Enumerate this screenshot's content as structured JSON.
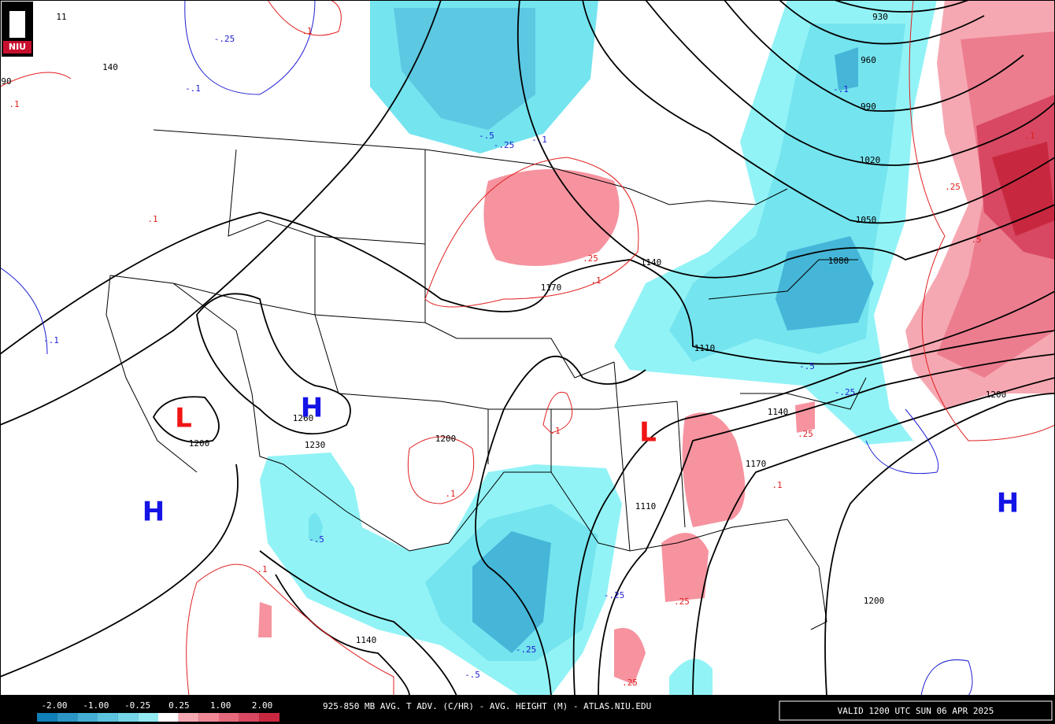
{
  "logo": "NIU",
  "map": {
    "height_labels": [
      "930",
      "960",
      "990",
      "1020",
      "1050",
      "1080",
      "1110",
      "1140",
      "1170",
      "1200",
      "1230",
      "1260",
      "1200",
      "1140",
      "1170",
      "1110",
      "1140",
      "1200",
      "1200",
      "140",
      "11",
      "90"
    ],
    "cold_advection_labels": [
      "-.25",
      "-.1",
      "-.1",
      "-.5",
      "-.25",
      "-.1",
      "-.1",
      "-.5",
      "-.25",
      "-.5",
      "-.25",
      "-.5",
      "-.25"
    ],
    "warm_advection_labels": [
      ".1",
      ".1",
      ".1",
      ".25",
      ".1",
      ".1",
      ".1",
      ".25",
      ".1",
      ".25",
      ".25",
      ".1",
      ".25",
      ".5",
      ".1"
    ],
    "highs": [
      "H",
      "H",
      "H"
    ],
    "lows": [
      "L",
      "L"
    ]
  },
  "footer": {
    "legend": {
      "labels": [
        "-2.00",
        "-1.00",
        "-0.25",
        "0.25",
        "1.00",
        "2.00"
      ],
      "colors": [
        "#0f7fb7",
        "#2b95c6",
        "#45aed4",
        "#5cc3df",
        "#74d6e8",
        "#93eaf2",
        "#ffffff",
        "#f6a8b2",
        "#f08898",
        "#e5687c",
        "#d84862",
        "#c8283f"
      ]
    },
    "title": "925-850 MB AVG. T ADV. (C/HR) - AVG. HEIGHT (M) - ATLAS.NIU.EDU",
    "valid": "VALID 1200 UTC SUN 06 APR 2025"
  }
}
